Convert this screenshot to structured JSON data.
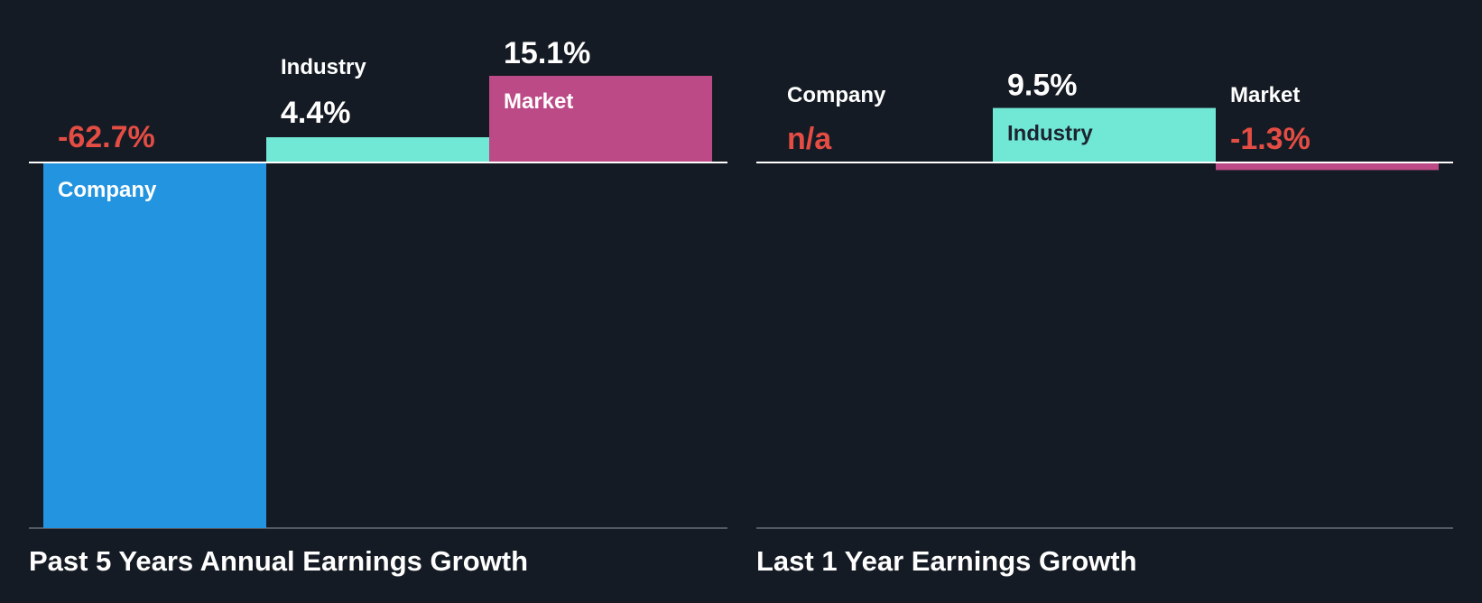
{
  "colors": {
    "background": "#151b24",
    "company": "#2394df",
    "industry": "#71e7d6",
    "market": "#bb4a86",
    "negative_text": "#e44d44",
    "positive_text": "#ffffff",
    "label_on_light": "#1c2430",
    "baseline": "#ffffff",
    "axis_line": "#525964"
  },
  "chart_data": [
    {
      "type": "bar",
      "title": "Past 5 Years Annual Earnings Growth",
      "categories": [
        "Company",
        "Industry",
        "Market"
      ],
      "values": [
        -62.7,
        4.4,
        15.1
      ],
      "value_labels": [
        "-62.7%",
        "4.4%",
        "15.1%"
      ],
      "unit": "%",
      "ylim": [
        -62.7,
        15.1
      ],
      "grid": false
    },
    {
      "type": "bar",
      "title": "Last 1 Year Earnings Growth",
      "categories": [
        "Company",
        "Industry",
        "Market"
      ],
      "values": [
        null,
        9.5,
        -1.3
      ],
      "value_labels": [
        "n/a",
        "9.5%",
        "-1.3%"
      ],
      "unit": "%",
      "ylim": [
        -62.7,
        15.1
      ],
      "grid": false
    }
  ]
}
